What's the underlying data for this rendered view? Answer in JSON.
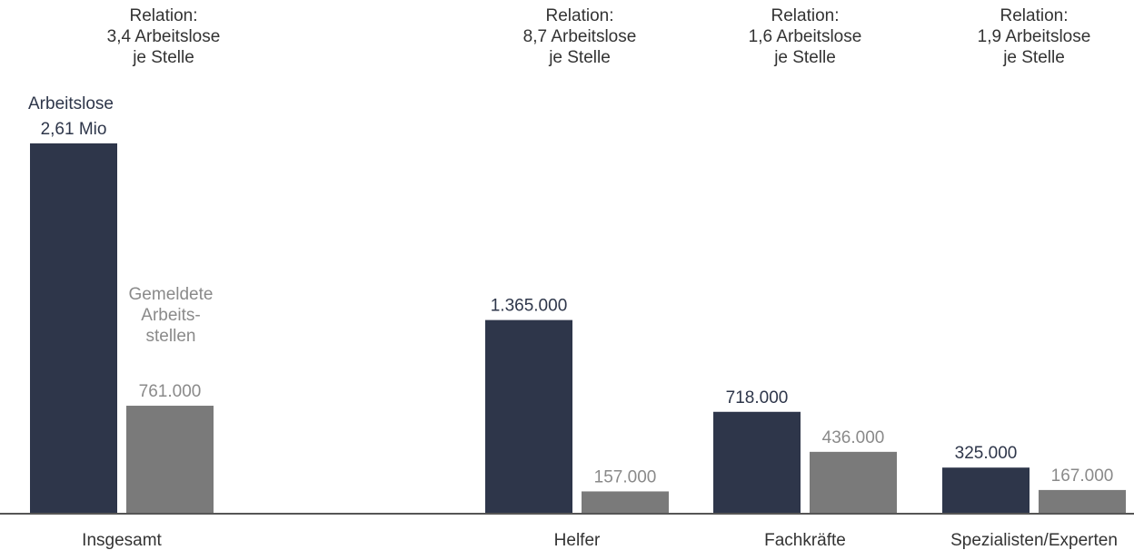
{
  "chart_data": {
    "type": "bar",
    "categories": [
      "Insgesamt",
      "Helfer",
      "Fachkräfte",
      "Spezialisten/Experten"
    ],
    "series": [
      {
        "name": "Arbeitslose",
        "color": "#2e364a",
        "values": [
          2610000,
          1365000,
          718000,
          325000
        ],
        "labels": [
          "2,61 Mio",
          "1.365.000",
          "718.000",
          "325.000"
        ]
      },
      {
        "name": "Gemeldete Arbeits-stellen",
        "color": "#7a7a7a",
        "values": [
          761000,
          157000,
          436000,
          167000
        ],
        "labels": [
          "761.000",
          "157.000",
          "436.000",
          "167.000"
        ]
      }
    ],
    "relations": [
      [
        "Relation:",
        "3,4 Arbeitslose",
        "je Stelle"
      ],
      [
        "Relation:",
        "8,7 Arbeitslose",
        "je Stelle"
      ],
      [
        "Relation:",
        "1,6 Arbeitslose",
        "je Stelle"
      ],
      [
        "Relation:",
        "1,9 Arbeitslose",
        "je Stelle"
      ]
    ],
    "legend_notes": {
      "arbeitslose": "Arbeitslose",
      "stellen": [
        "Gemeldete",
        "Arbeits-",
        "stellen"
      ]
    },
    "ylim": [
      0,
      2610000
    ],
    "grid": false
  }
}
